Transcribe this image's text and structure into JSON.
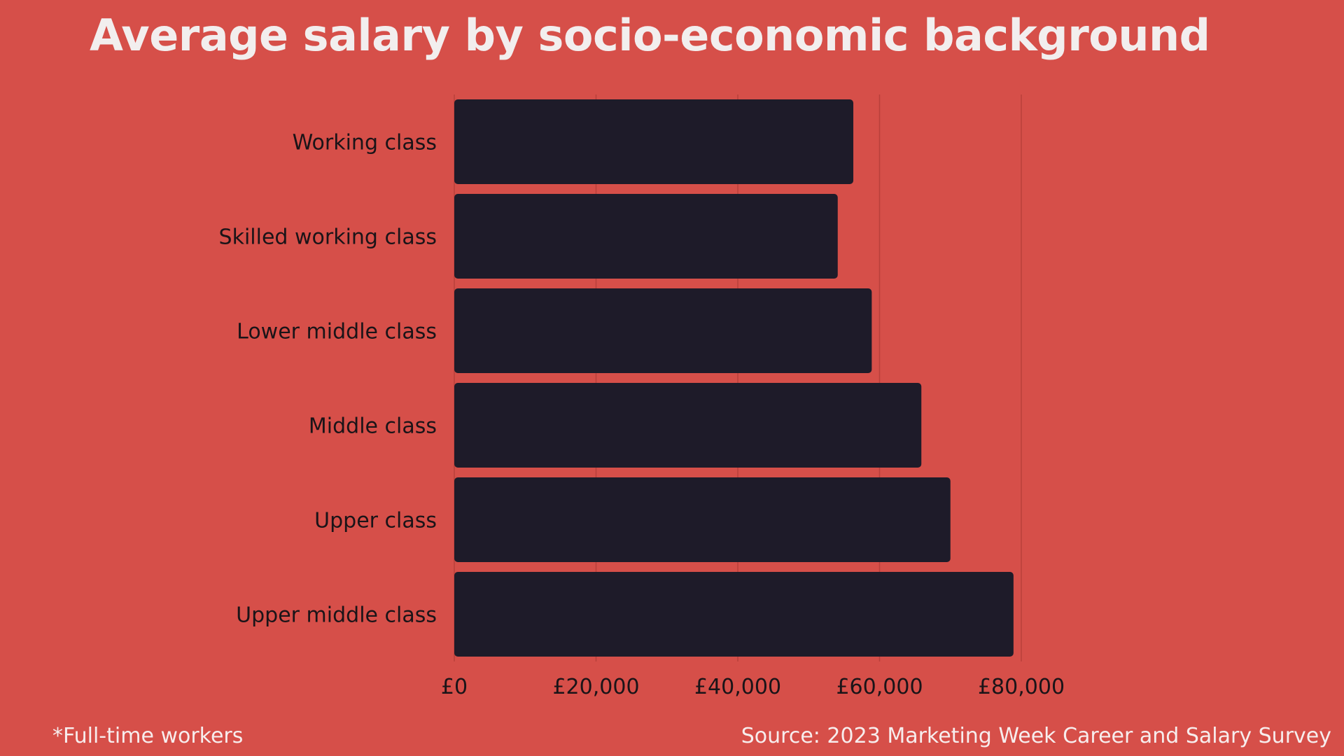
{
  "chart_data": {
    "type": "bar",
    "orientation": "horizontal",
    "title": "Average salary by socio-economic background",
    "categories": [
      "Working class",
      "Skilled working class",
      "Lower middle class",
      "Middle class",
      "Upper class",
      "Upper middle class"
    ],
    "values": [
      56300,
      54100,
      58900,
      65900,
      70000,
      78900
    ],
    "xlim": [
      0,
      80000
    ],
    "xticks": [
      0,
      20000,
      40000,
      60000,
      80000
    ],
    "xtick_labels": [
      "£0",
      "£20,000",
      "£40,000",
      "£60,000",
      "£80,000"
    ],
    "xlabel": "",
    "ylabel": "",
    "grid": true,
    "colors": {
      "background": "#d64f49",
      "bar": "#1e1b29",
      "grid": "#b8403b",
      "label": "#1a1418",
      "title": "#f2eeee"
    }
  },
  "footnote": "*Full-time workers",
  "source": "Source: 2023 Marketing Week Career and Salary Survey"
}
